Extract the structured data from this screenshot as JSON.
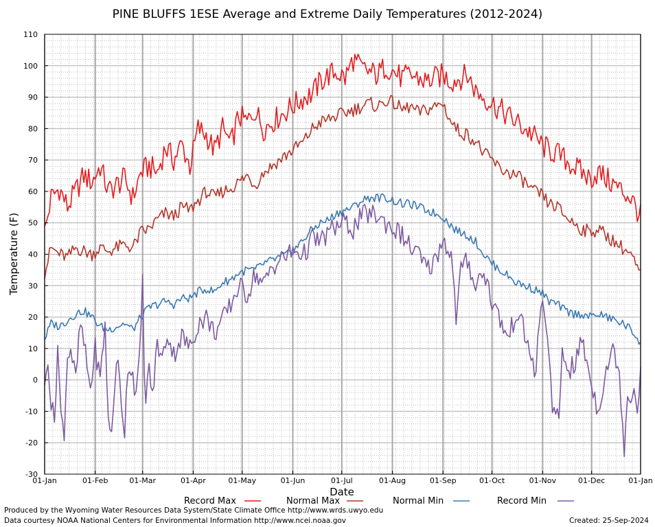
{
  "chart_data": {
    "type": "line",
    "title": "PINE BLUFFS 1ESE Average and Extreme Daily Temperatures (2012-2024)",
    "xlabel": "Date",
    "ylabel": "Temperature (F)",
    "ylim": [
      -30,
      110
    ],
    "yticks": [
      -30,
      -20,
      -10,
      0,
      10,
      20,
      30,
      40,
      50,
      60,
      70,
      80,
      90,
      100,
      110
    ],
    "xlim_day_of_year": [
      1,
      366
    ],
    "xtick_labels": [
      "01-Jan",
      "01-Feb",
      "01-Mar",
      "01-Apr",
      "01-May",
      "01-Jun",
      "01-Jul",
      "01-Aug",
      "01-Sep",
      "01-Oct",
      "01-Nov",
      "01-Dec",
      "01-Jan"
    ],
    "xtick_days": [
      1,
      32,
      61,
      92,
      122,
      153,
      183,
      214,
      245,
      275,
      306,
      336,
      366
    ],
    "grid": true,
    "legend_position": "bottom",
    "series": [
      {
        "name": "Record Max",
        "color": "#e41a1c",
        "x_day_of_year": [
          1,
          5,
          10,
          15,
          20,
          25,
          30,
          35,
          40,
          45,
          50,
          55,
          60,
          65,
          70,
          75,
          80,
          85,
          90,
          95,
          100,
          105,
          110,
          115,
          120,
          125,
          130,
          135,
          140,
          145,
          150,
          155,
          160,
          165,
          170,
          175,
          180,
          185,
          190,
          195,
          200,
          205,
          210,
          215,
          220,
          225,
          230,
          235,
          240,
          245,
          250,
          255,
          260,
          265,
          270,
          275,
          280,
          285,
          290,
          295,
          300,
          305,
          310,
          315,
          320,
          325,
          330,
          335,
          340,
          345,
          350,
          355,
          360,
          366
        ],
        "values": [
          47,
          58,
          61,
          55,
          60,
          65,
          63,
          68,
          60,
          62,
          64,
          58,
          66,
          68,
          66,
          74,
          70,
          75,
          68,
          80,
          78,
          73,
          80,
          75,
          84,
          82,
          86,
          80,
          82,
          84,
          86,
          88,
          90,
          91,
          95,
          97,
          98,
          96,
          102,
          99,
          98,
          97,
          100,
          98,
          96,
          97,
          96,
          95,
          96,
          97,
          95,
          96,
          97,
          92,
          90,
          88,
          86,
          84,
          82,
          80,
          78,
          75,
          73,
          72,
          70,
          68,
          66,
          64,
          66,
          64,
          62,
          60,
          58,
          52
        ]
      },
      {
        "name": "Normal Max",
        "color": "#b2362b",
        "x_day_of_year": [
          1,
          5,
          10,
          15,
          20,
          25,
          30,
          35,
          40,
          45,
          50,
          55,
          60,
          65,
          70,
          75,
          80,
          85,
          90,
          95,
          100,
          105,
          110,
          115,
          120,
          125,
          130,
          135,
          140,
          145,
          150,
          155,
          160,
          165,
          170,
          175,
          180,
          185,
          190,
          195,
          200,
          205,
          210,
          215,
          220,
          225,
          230,
          235,
          240,
          245,
          250,
          255,
          260,
          265,
          270,
          275,
          280,
          285,
          290,
          295,
          300,
          305,
          310,
          315,
          320,
          325,
          330,
          335,
          340,
          345,
          350,
          355,
          360,
          366
        ],
        "values": [
          34,
          42,
          40,
          39,
          42,
          41,
          40,
          42,
          41,
          42,
          43,
          42,
          47,
          48,
          51,
          53,
          52,
          55,
          54,
          57,
          60,
          58,
          60,
          61,
          63,
          65,
          62,
          66,
          68,
          70,
          72,
          74,
          76,
          80,
          82,
          83,
          84,
          85,
          86,
          87,
          88,
          87,
          89,
          88,
          86,
          87,
          85,
          86,
          87,
          88,
          82,
          79,
          78,
          76,
          72,
          70,
          67,
          66,
          65,
          63,
          60,
          59,
          56,
          55,
          52,
          50,
          48,
          47,
          48,
          46,
          44,
          42,
          40,
          33
        ]
      },
      {
        "name": "Normal Min",
        "color": "#3a78b0",
        "x_day_of_year": [
          1,
          5,
          10,
          15,
          20,
          25,
          30,
          35,
          40,
          45,
          50,
          55,
          60,
          65,
          70,
          75,
          80,
          85,
          90,
          95,
          100,
          105,
          110,
          115,
          120,
          125,
          130,
          135,
          140,
          145,
          150,
          155,
          160,
          165,
          170,
          175,
          180,
          185,
          190,
          195,
          200,
          205,
          210,
          215,
          220,
          225,
          230,
          235,
          240,
          245,
          250,
          255,
          260,
          265,
          270,
          275,
          280,
          285,
          290,
          295,
          300,
          305,
          310,
          315,
          320,
          325,
          330,
          335,
          340,
          345,
          350,
          355,
          360,
          366
        ],
        "values": [
          13,
          18,
          17,
          19,
          21,
          22,
          20,
          17,
          16,
          17,
          18,
          16,
          20,
          23,
          24,
          25,
          24,
          26,
          26,
          28,
          29,
          28,
          31,
          32,
          34,
          35,
          35,
          37,
          38,
          39,
          40,
          42,
          45,
          48,
          50,
          51,
          53,
          54,
          55,
          57,
          58,
          58,
          58,
          57,
          56,
          56,
          55,
          54,
          53,
          52,
          49,
          47,
          46,
          44,
          40,
          37,
          35,
          33,
          31,
          30,
          29,
          28,
          25,
          24,
          22,
          21,
          21,
          20,
          21,
          20,
          19,
          18,
          16,
          12
        ]
      },
      {
        "name": "Record Min",
        "color": "#7b5aa0",
        "x_day_of_year": [
          1,
          3,
          5,
          7,
          9,
          11,
          13,
          15,
          17,
          20,
          23,
          26,
          29,
          32,
          35,
          38,
          40,
          42,
          44,
          46,
          48,
          50,
          52,
          55,
          57,
          59,
          61,
          62,
          63,
          65,
          67,
          70,
          73,
          76,
          80,
          85,
          90,
          95,
          100,
          105,
          110,
          115,
          120,
          125,
          130,
          135,
          140,
          145,
          150,
          155,
          160,
          165,
          170,
          175,
          180,
          185,
          190,
          195,
          200,
          205,
          210,
          215,
          220,
          225,
          230,
          235,
          240,
          245,
          250,
          253,
          256,
          260,
          265,
          270,
          275,
          280,
          285,
          290,
          295,
          300,
          302,
          304,
          306,
          308,
          310,
          312,
          314,
          316,
          318,
          322,
          326,
          330,
          335,
          340,
          345,
          350,
          353,
          356,
          358,
          360,
          362,
          364,
          366
        ],
        "values": [
          -4,
          8,
          -8,
          -13,
          11,
          -12,
          -16,
          8,
          10,
          0,
          18,
          8,
          -3,
          10,
          0,
          18,
          -14,
          -17,
          0,
          5,
          -7,
          -16,
          5,
          2,
          -5,
          5,
          31,
          5,
          -8,
          5,
          -6,
          12,
          6,
          15,
          8,
          14,
          10,
          18,
          20,
          15,
          19,
          24,
          30,
          27,
          34,
          30,
          36,
          38,
          40,
          41,
          40,
          45,
          44,
          47,
          49,
          50,
          48,
          52,
          53,
          52,
          50,
          48,
          46,
          42,
          40,
          35,
          38,
          45,
          40,
          20,
          35,
          38,
          30,
          35,
          25,
          19,
          13,
          22,
          15,
          5,
          2,
          20,
          23,
          18,
          10,
          -12,
          -12,
          -12,
          9,
          3,
          5,
          13,
          1,
          -10,
          4,
          10,
          1,
          -21,
          -4,
          -6,
          -3,
          -8,
          3
        ]
      }
    ],
    "footer_left_1": "Produced by the Wyoming Water Resources Data System/State Climate Office http://www.wrds.uwyo.edu",
    "footer_left_2": "Data courtesy NOAA National Centers for Environmental Information http://www.ncei.noaa.gov",
    "footer_right": "Created:  25-Sep-2024"
  }
}
